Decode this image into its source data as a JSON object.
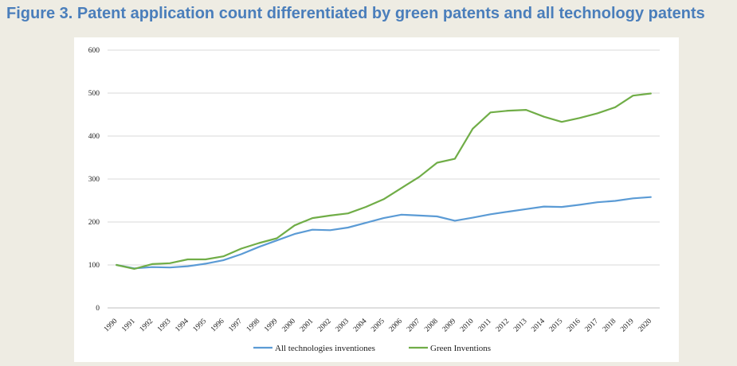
{
  "figure_title": "Figure 3. Patent application count differentiated by green patents and all technology patents",
  "chart_data": {
    "type": "line",
    "title": "",
    "xlabel": "",
    "ylabel": "",
    "ylim": [
      0,
      600
    ],
    "yticks": [
      0,
      100,
      200,
      300,
      400,
      500,
      600
    ],
    "grid": true,
    "legend_position": "bottom",
    "categories": [
      "1990",
      "1991",
      "1992",
      "1993",
      "1994",
      "1995",
      "1996",
      "1997",
      "1998",
      "1999",
      "2000",
      "2001",
      "2002",
      "2003",
      "2004",
      "2005",
      "2006",
      "2007",
      "2008",
      "2009",
      "2010",
      "2011",
      "2012",
      "2013",
      "2014",
      "2015",
      "2016",
      "2017",
      "2018",
      "2019",
      "2020"
    ],
    "series": [
      {
        "name": "All technologies inventiones",
        "color": "#5b9bd5",
        "values": [
          100,
          92,
          95,
          94,
          97,
          103,
          111,
          125,
          142,
          157,
          172,
          182,
          181,
          187,
          198,
          209,
          217,
          215,
          213,
          203,
          210,
          218,
          224,
          230,
          236,
          235,
          240,
          246,
          249,
          255,
          258
        ]
      },
      {
        "name": "Green Inventions",
        "color": "#70ad47",
        "values": [
          100,
          91,
          102,
          104,
          113,
          113,
          120,
          138,
          151,
          162,
          192,
          209,
          215,
          220,
          235,
          253,
          279,
          305,
          338,
          347,
          417,
          455,
          459,
          461,
          445,
          433,
          442,
          453,
          467,
          494,
          499
        ]
      }
    ]
  }
}
